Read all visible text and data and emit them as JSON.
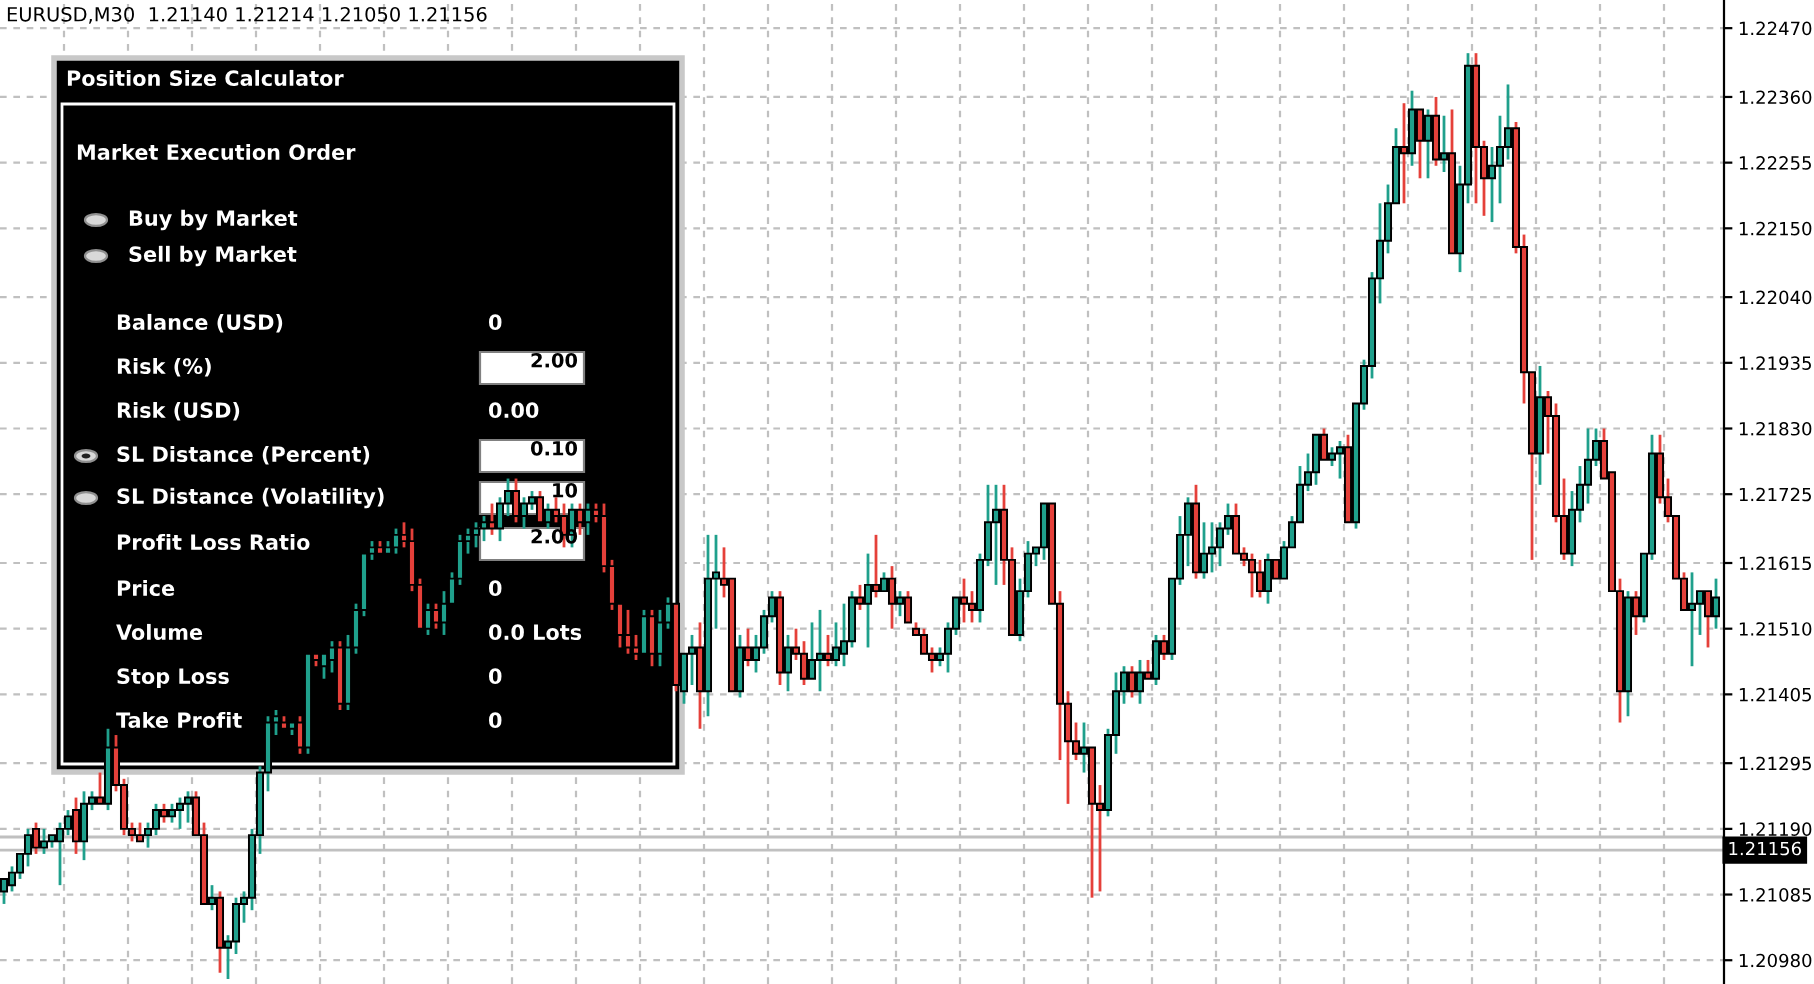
{
  "chart_data": {
    "type": "candlestick",
    "title": "EURUSD,M30  1.21140 1.21214 1.21050 1.21156",
    "categories": [
      null,
      null,
      null,
      null,
      null,
      null,
      null,
      null,
      null,
      null,
      null,
      null,
      null,
      null,
      null,
      null,
      null,
      null,
      null,
      null,
      null,
      null,
      null,
      null,
      null,
      null,
      null,
      null,
      null,
      null,
      null,
      null,
      null,
      null,
      null,
      null,
      null,
      null,
      null,
      null,
      null,
      null,
      null,
      null,
      null,
      null,
      null,
      null,
      null,
      null,
      null,
      null,
      null,
      null,
      null,
      null,
      null,
      null,
      null,
      null,
      null,
      null,
      null,
      null,
      null,
      null,
      null,
      null,
      null,
      null,
      null,
      null,
      null,
      null,
      null,
      null,
      null,
      null,
      null,
      null,
      null,
      null,
      null,
      null,
      null,
      null,
      null,
      null,
      null,
      null,
      null,
      null,
      null,
      null,
      null,
      null,
      null,
      null,
      null,
      null,
      null,
      null,
      null,
      null,
      null,
      null,
      null,
      null,
      null,
      null,
      null,
      null,
      null,
      null,
      null,
      null,
      null,
      null,
      null,
      null,
      null,
      null,
      null,
      null,
      null,
      null,
      null,
      null,
      null,
      null,
      null,
      null,
      null,
      null,
      null,
      null,
      null,
      null,
      null,
      null,
      null,
      null,
      null,
      null,
      null,
      null,
      null,
      null,
      null,
      null,
      null,
      null,
      null,
      null,
      null,
      null,
      null,
      null,
      null,
      null,
      null,
      null,
      null,
      null,
      null,
      null,
      null,
      null,
      null,
      null,
      null,
      null,
      null,
      null,
      null,
      null,
      null,
      null,
      null,
      null,
      null,
      null,
      null,
      null,
      null,
      null,
      null,
      null,
      null,
      null,
      null,
      null,
      null,
      null,
      null,
      null,
      null,
      null,
      null,
      null,
      null,
      null,
      null,
      null,
      null,
      null,
      null,
      null,
      null,
      null,
      null,
      null,
      null,
      null,
      null
    ],
    "ohlc": [
      [
        1.2109,
        1.2111,
        1.2107,
        1.2111
      ],
      [
        1.211,
        1.2113,
        1.2109,
        1.2112
      ],
      [
        1.2112,
        1.2115,
        1.2111,
        1.2115
      ],
      [
        1.2115,
        1.2119,
        1.2113,
        1.2118
      ],
      [
        1.2119,
        1.212,
        1.2115,
        1.2116
      ],
      [
        1.2116,
        1.2119,
        1.2115,
        1.2117
      ],
      [
        1.2117,
        1.2118,
        1.2116,
        1.2118
      ],
      [
        1.2117,
        1.212,
        1.211,
        1.2119
      ],
      [
        1.2119,
        1.2122,
        1.2118,
        1.2121
      ],
      [
        1.2122,
        1.2124,
        1.2115,
        1.2117
      ],
      [
        1.2117,
        1.2125,
        1.2114,
        1.2123
      ],
      [
        1.2123,
        1.2125,
        1.2122,
        1.2124
      ],
      [
        1.2124,
        1.2128,
        1.2123,
        1.2123
      ],
      [
        1.2123,
        1.2135,
        1.2122,
        1.2132
      ],
      [
        1.2132,
        1.2134,
        1.2125,
        1.2126
      ],
      [
        1.2126,
        1.2127,
        1.2118,
        1.2119
      ],
      [
        1.2119,
        1.212,
        1.2117,
        1.2118
      ],
      [
        1.2118,
        1.212,
        1.2117,
        1.2117
      ],
      [
        1.2118,
        1.212,
        1.2116,
        1.2119
      ],
      [
        1.2119,
        1.2123,
        1.2118,
        1.2122
      ],
      [
        1.2122,
        1.2123,
        1.212,
        1.2121
      ],
      [
        1.2121,
        1.2123,
        1.212,
        1.2122
      ],
      [
        1.2122,
        1.2124,
        1.2119,
        1.2123
      ],
      [
        1.2123,
        1.2125,
        1.212,
        1.2124
      ],
      [
        1.2124,
        1.2125,
        1.2118,
        1.2118
      ],
      [
        1.2118,
        1.212,
        1.2107,
        1.2107
      ],
      [
        1.2107,
        1.211,
        1.2106,
        1.2108
      ],
      [
        1.2108,
        1.2109,
        1.2096,
        1.21
      ],
      [
        1.21,
        1.2102,
        1.2095,
        1.2101
      ],
      [
        1.2101,
        1.2108,
        1.2099,
        1.2107
      ],
      [
        1.2107,
        1.2109,
        1.2104,
        1.2108
      ],
      [
        1.2108,
        1.2119,
        1.2106,
        1.2118
      ],
      [
        1.2118,
        1.2129,
        1.2115,
        1.2128
      ],
      [
        1.2128,
        1.2137,
        1.2125,
        1.2136
      ],
      [
        1.2136,
        1.2138,
        1.2134,
        1.2137
      ],
      [
        1.2136,
        1.2137,
        1.2135,
        1.2135
      ],
      [
        1.2135,
        1.2136,
        1.2134,
        1.2136
      ],
      [
        1.2136,
        1.2137,
        1.2131,
        1.2132
      ],
      [
        1.2132,
        1.2147,
        1.2131,
        1.2147
      ],
      [
        1.2147,
        1.2147,
        1.2145,
        1.2146
      ],
      [
        1.2145,
        1.2147,
        1.2143,
        1.2147
      ],
      [
        1.2146,
        1.2149,
        1.2144,
        1.2148
      ],
      [
        1.2148,
        1.2149,
        1.2138,
        1.2139
      ],
      [
        1.2139,
        1.215,
        1.2138,
        1.2148
      ],
      [
        1.2148,
        1.2155,
        1.2147,
        1.2154
      ],
      [
        1.2154,
        1.2163,
        1.2153,
        1.2163
      ],
      [
        1.2163,
        1.2165,
        1.2162,
        1.2164
      ],
      [
        1.2164,
        1.2165,
        1.2163,
        1.2163
      ],
      [
        1.2163,
        1.2165,
        1.2163,
        1.2164
      ],
      [
        1.2164,
        1.2167,
        1.2163,
        1.2166
      ],
      [
        1.2166,
        1.2168,
        1.2164,
        1.2165
      ],
      [
        1.2165,
        1.2167,
        1.2157,
        1.2158
      ],
      [
        1.2158,
        1.2159,
        1.2151,
        1.2151
      ],
      [
        1.2151,
        1.2155,
        1.215,
        1.2154
      ],
      [
        1.2154,
        1.2155,
        1.2151,
        1.2152
      ],
      [
        1.2152,
        1.2157,
        1.215,
        1.2155
      ],
      [
        1.2155,
        1.216,
        1.2155,
        1.2159
      ],
      [
        1.2159,
        1.2166,
        1.2158,
        1.2165
      ],
      [
        1.2165,
        1.2167,
        1.2163,
        1.2166
      ],
      [
        1.2166,
        1.2168,
        1.2164,
        1.2167
      ],
      [
        1.2167,
        1.2169,
        1.2165,
        1.2168
      ],
      [
        1.2168,
        1.2171,
        1.2166,
        1.2167
      ],
      [
        1.2167,
        1.2172,
        1.2165,
        1.2171
      ],
      [
        1.2171,
        1.2175,
        1.2169,
        1.2173
      ],
      [
        1.2173,
        1.2175,
        1.2168,
        1.2169
      ],
      [
        1.2169,
        1.2172,
        1.2167,
        1.2171
      ],
      [
        1.2171,
        1.2173,
        1.217,
        1.2172
      ],
      [
        1.2172,
        1.2173,
        1.2168,
        1.2168
      ],
      [
        1.2168,
        1.2171,
        1.2167,
        1.217
      ],
      [
        1.217,
        1.2172,
        1.2168,
        1.2169
      ],
      [
        1.2169,
        1.2171,
        1.2164,
        1.2166
      ],
      [
        1.2166,
        1.2171,
        1.2164,
        1.217
      ],
      [
        1.217,
        1.2171,
        1.2166,
        1.2168
      ],
      [
        1.2168,
        1.2171,
        1.2166,
        1.217
      ],
      [
        1.217,
        1.2171,
        1.2168,
        1.2169
      ],
      [
        1.2169,
        1.2171,
        1.216,
        1.2161
      ],
      [
        1.2161,
        1.2162,
        1.2154,
        1.2155
      ],
      [
        1.2155,
        1.2155,
        1.2148,
        1.215
      ],
      [
        1.215,
        1.2154,
        1.2147,
        1.2148
      ],
      [
        1.2148,
        1.215,
        1.2146,
        1.2147
      ],
      [
        1.2147,
        1.2154,
        1.2147,
        1.2153
      ],
      [
        1.2153,
        1.2154,
        1.2145,
        1.2147
      ],
      [
        1.2147,
        1.2154,
        1.2145,
        1.2152
      ],
      [
        1.2152,
        1.2156,
        1.2151,
        1.2155
      ],
      [
        1.2155,
        1.2155,
        1.2141,
        1.2142
      ],
      [
        1.2141,
        1.2147,
        1.2139,
        1.2147
      ],
      [
        1.2147,
        1.215,
        1.2142,
        1.2148
      ],
      [
        1.2148,
        1.2152,
        1.2135,
        1.2141
      ],
      [
        1.2141,
        1.2166,
        1.2137,
        1.2159
      ],
      [
        1.2159,
        1.2166,
        1.2151,
        1.216
      ],
      [
        1.2159,
        1.2164,
        1.2156,
        1.2158
      ],
      [
        1.2159,
        1.2159,
        1.2141,
        1.2141
      ],
      [
        1.2141,
        1.215,
        1.214,
        1.2148
      ],
      [
        1.2148,
        1.2151,
        1.2145,
        1.2146
      ],
      [
        1.2146,
        1.215,
        1.2144,
        1.2148
      ],
      [
        1.2148,
        1.2154,
        1.2147,
        1.2153
      ],
      [
        1.2153,
        1.2157,
        1.2152,
        1.2156
      ],
      [
        1.2156,
        1.2157,
        1.2142,
        1.2144
      ],
      [
        1.2144,
        1.215,
        1.2141,
        1.2148
      ],
      [
        1.2148,
        1.2151,
        1.2146,
        1.2147
      ],
      [
        1.2147,
        1.2149,
        1.2142,
        1.2143
      ],
      [
        1.2143,
        1.2152,
        1.2143,
        1.2146
      ],
      [
        1.2146,
        1.2154,
        1.2141,
        1.2147
      ],
      [
        1.2147,
        1.215,
        1.2145,
        1.2146
      ],
      [
        1.2146,
        1.2152,
        1.2145,
        1.2148
      ],
      [
        1.2147,
        1.2155,
        1.2145,
        1.2149
      ],
      [
        1.2149,
        1.2157,
        1.2148,
        1.2156
      ],
      [
        1.2156,
        1.2158,
        1.2154,
        1.2155
      ],
      [
        1.2155,
        1.2163,
        1.2148,
        1.2158
      ],
      [
        1.2158,
        1.2166,
        1.2156,
        1.2157
      ],
      [
        1.2157,
        1.216,
        1.2157,
        1.2159
      ],
      [
        1.2159,
        1.2161,
        1.2151,
        1.2155
      ],
      [
        1.2155,
        1.2157,
        1.2153,
        1.2156
      ],
      [
        1.2156,
        1.2157,
        1.2152,
        1.2152
      ],
      [
        1.2151,
        1.2152,
        1.215,
        1.215
      ],
      [
        1.215,
        1.2151,
        1.2147,
        1.2147
      ],
      [
        1.2147,
        1.2148,
        1.2144,
        1.2146
      ],
      [
        1.2146,
        1.2148,
        1.2145,
        1.2147
      ],
      [
        1.2147,
        1.2152,
        1.2144,
        1.2151
      ],
      [
        1.2151,
        1.2156,
        1.215,
        1.2156
      ],
      [
        1.2156,
        1.2159,
        1.2152,
        1.2155
      ],
      [
        1.2155,
        1.2157,
        1.2152,
        1.2154
      ],
      [
        1.2154,
        1.2163,
        1.2152,
        1.2162
      ],
      [
        1.2162,
        1.2174,
        1.2161,
        1.2168
      ],
      [
        1.2168,
        1.2174,
        1.2158,
        1.217
      ],
      [
        1.217,
        1.2174,
        1.2158,
        1.2162
      ],
      [
        1.2162,
        1.2164,
        1.215,
        1.215
      ],
      [
        1.215,
        1.2159,
        1.2149,
        1.2157
      ],
      [
        1.2157,
        1.2165,
        1.2156,
        1.2163
      ],
      [
        1.2163,
        1.2164,
        1.2161,
        1.2164
      ],
      [
        1.2164,
        1.2171,
        1.2162,
        1.2171
      ],
      [
        1.2171,
        1.2171,
        1.2155,
        1.2155
      ],
      [
        1.2155,
        1.2157,
        1.213,
        1.2139
      ],
      [
        1.2139,
        1.2141,
        1.2123,
        1.2133
      ],
      [
        1.2133,
        1.2136,
        1.213,
        1.2131
      ],
      [
        1.2131,
        1.2136,
        1.2128,
        1.2132
      ],
      [
        1.2132,
        1.2132,
        1.2108,
        1.2123
      ],
      [
        1.2123,
        1.2126,
        1.2109,
        1.2122
      ],
      [
        1.2122,
        1.2135,
        1.2121,
        1.2134
      ],
      [
        1.2134,
        1.2144,
        1.2131,
        1.2141
      ],
      [
        1.2141,
        1.2145,
        1.2139,
        1.2144
      ],
      [
        1.2144,
        1.2145,
        1.214,
        1.2141
      ],
      [
        1.2141,
        1.2146,
        1.2139,
        1.2144
      ],
      [
        1.2144,
        1.2146,
        1.2143,
        1.2143
      ],
      [
        1.2143,
        1.215,
        1.2142,
        1.2149
      ],
      [
        1.2149,
        1.215,
        1.2146,
        1.2147
      ],
      [
        1.2147,
        1.2159,
        1.2146,
        1.2159
      ],
      [
        1.2159,
        1.2169,
        1.2158,
        1.2166
      ],
      [
        1.2166,
        1.2172,
        1.2161,
        1.2171
      ],
      [
        1.2171,
        1.2174,
        1.2159,
        1.216
      ],
      [
        1.216,
        1.2168,
        1.2159,
        1.2163
      ],
      [
        1.2163,
        1.2168,
        1.216,
        1.2164
      ],
      [
        1.2164,
        1.2168,
        1.2161,
        1.2167
      ],
      [
        1.2167,
        1.2171,
        1.2166,
        1.2169
      ],
      [
        1.2169,
        1.2171,
        1.2163,
        1.2163
      ],
      [
        1.2163,
        1.2164,
        1.2161,
        1.2162
      ],
      [
        1.2162,
        1.2163,
        1.2156,
        1.216
      ],
      [
        1.216,
        1.2162,
        1.2156,
        1.2157
      ],
      [
        1.2157,
        1.2163,
        1.2155,
        1.2162
      ],
      [
        1.2162,
        1.2162,
        1.2159,
        1.2159
      ],
      [
        1.2159,
        1.2165,
        1.2159,
        1.2164
      ],
      [
        1.2164,
        1.2169,
        1.2164,
        1.2168
      ],
      [
        1.2168,
        1.2177,
        1.2168,
        1.2174
      ],
      [
        1.2174,
        1.2179,
        1.2173,
        1.2176
      ],
      [
        1.2176,
        1.2182,
        1.2174,
        1.2182
      ],
      [
        1.2182,
        1.2183,
        1.2178,
        1.2178
      ],
      [
        1.2178,
        1.218,
        1.2177,
        1.2179
      ],
      [
        1.2179,
        1.2181,
        1.2175,
        1.218
      ],
      [
        1.218,
        1.2182,
        1.2168,
        1.2168
      ],
      [
        1.2168,
        1.2187,
        1.2167,
        1.2187
      ],
      [
        1.2187,
        1.2194,
        1.2186,
        1.2193
      ],
      [
        1.2193,
        1.2208,
        1.2191,
        1.2207
      ],
      [
        1.2207,
        1.2219,
        1.2203,
        1.2213
      ],
      [
        1.2213,
        1.2222,
        1.2211,
        1.2219
      ],
      [
        1.2219,
        1.2231,
        1.2219,
        1.2228
      ],
      [
        1.2228,
        1.2235,
        1.2219,
        1.2227
      ],
      [
        1.2227,
        1.2237,
        1.2225,
        1.2234
      ],
      [
        1.2234,
        1.2234,
        1.2223,
        1.2229
      ],
      [
        1.2229,
        1.2234,
        1.2223,
        1.2233
      ],
      [
        1.2233,
        1.2236,
        1.2225,
        1.2226
      ],
      [
        1.2226,
        1.2233,
        1.2224,
        1.2227
      ],
      [
        1.2227,
        1.2234,
        1.2211,
        1.2211
      ],
      [
        1.2211,
        1.2225,
        1.2208,
        1.2222
      ],
      [
        1.2222,
        1.2243,
        1.2219,
        1.2241
      ],
      [
        1.2241,
        1.2243,
        1.2219,
        1.2228
      ],
      [
        1.2228,
        1.2229,
        1.2217,
        1.2223
      ],
      [
        1.2223,
        1.2228,
        1.2216,
        1.2225
      ],
      [
        1.2225,
        1.2233,
        1.2219,
        1.2228
      ],
      [
        1.2228,
        1.2238,
        1.2226,
        1.2231
      ],
      [
        1.2231,
        1.2232,
        1.2211,
        1.2212
      ],
      [
        1.2212,
        1.2214,
        1.2187,
        1.2192
      ],
      [
        1.2192,
        1.2192,
        1.2162,
        1.2179
      ],
      [
        1.2179,
        1.2193,
        1.2174,
        1.2188
      ],
      [
        1.2188,
        1.2189,
        1.2179,
        1.2185
      ],
      [
        1.2185,
        1.2187,
        1.2168,
        1.2169
      ],
      [
        1.2169,
        1.2175,
        1.2162,
        1.2163
      ],
      [
        1.2163,
        1.2173,
        1.2161,
        1.217
      ],
      [
        1.217,
        1.2177,
        1.2168,
        1.2174
      ],
      [
        1.2174,
        1.2183,
        1.2171,
        1.2178
      ],
      [
        1.2178,
        1.2183,
        1.2177,
        1.2181
      ],
      [
        1.2181,
        1.2183,
        1.2175,
        1.2175
      ],
      [
        1.2176,
        1.2176,
        1.2157,
        1.2157
      ],
      [
        1.2157,
        1.2159,
        1.2136,
        1.2141
      ],
      [
        1.2141,
        1.2157,
        1.2137,
        1.2156
      ],
      [
        1.2156,
        1.2157,
        1.215,
        1.2153
      ],
      [
        1.2153,
        1.2163,
        1.2152,
        1.2163
      ],
      [
        1.2163,
        1.2182,
        1.2162,
        1.2179
      ],
      [
        1.2179,
        1.2182,
        1.2171,
        1.2172
      ],
      [
        1.2172,
        1.2175,
        1.2168,
        1.2169
      ],
      [
        1.2169,
        1.2169,
        1.2159,
        1.2159
      ],
      [
        1.2159,
        1.216,
        1.2154,
        1.2154
      ],
      [
        1.2154,
        1.216,
        1.2145,
        1.2155
      ],
      [
        1.2155,
        1.2157,
        1.215,
        1.2157
      ],
      [
        1.2157,
        1.2157,
        1.2148,
        1.2153
      ],
      [
        1.2153,
        1.2159,
        1.2151,
        1.2156
      ]
    ],
    "colors": [
      "#1fa08c",
      "#1fa08c",
      "#1fa08c",
      "#1fa08c",
      "#e5403a",
      "#1fa08c",
      "#1fa08c",
      "#1fa08c",
      "#1fa08c",
      "#e5403a",
      "#1fa08c",
      "#1fa08c",
      "#e5403a",
      "#1fa08c",
      "#e5403a",
      "#e5403a",
      "#e5403a",
      "#e5403a",
      "#1fa08c",
      "#1fa08c",
      "#e5403a",
      "#1fa08c",
      "#1fa08c",
      "#1fa08c",
      "#e5403a",
      "#e5403a",
      "#1fa08c",
      "#e5403a",
      "#1fa08c",
      "#1fa08c",
      "#1fa08c",
      "#1fa08c",
      "#1fa08c",
      "#1fa08c",
      "#1fa08c",
      "#e5403a",
      "#1fa08c",
      "#e5403a",
      "#1fa08c",
      "#e5403a",
      "#1fa08c",
      "#1fa08c",
      "#e5403a",
      "#1fa08c",
      "#1fa08c",
      "#1fa08c",
      "#1fa08c",
      "#e5403a",
      "#1fa08c",
      "#1fa08c",
      "#e5403a",
      "#e5403a",
      "#e5403a",
      "#1fa08c",
      "#e5403a",
      "#1fa08c",
      "#1fa08c",
      "#1fa08c",
      "#1fa08c",
      "#1fa08c",
      "#1fa08c",
      "#e5403a",
      "#1fa08c",
      "#1fa08c",
      "#e5403a",
      "#1fa08c",
      "#1fa08c",
      "#e5403a",
      "#1fa08c",
      "#e5403a",
      "#e5403a",
      "#1fa08c",
      "#e5403a",
      "#1fa08c",
      "#e5403a",
      "#e5403a",
      "#e5403a",
      "#e5403a",
      "#e5403a",
      "#e5403a",
      "#1fa08c",
      "#e5403a",
      "#1fa08c",
      "#1fa08c",
      "#e5403a",
      "#1fa08c",
      "#1fa08c",
      "#e5403a",
      "#1fa08c",
      "#1fa08c",
      "#e5403a",
      "#e5403a",
      "#1fa08c",
      "#e5403a",
      "#1fa08c",
      "#1fa08c",
      "#1fa08c",
      "#e5403a",
      "#1fa08c",
      "#e5403a",
      "#e5403a",
      "#1fa08c",
      "#1fa08c",
      "#e5403a",
      "#1fa08c",
      "#1fa08c",
      "#1fa08c",
      "#e5403a",
      "#1fa08c",
      "#e5403a",
      "#1fa08c",
      "#e5403a",
      "#1fa08c",
      "#e5403a",
      "#e5403a",
      "#e5403a",
      "#e5403a",
      "#1fa08c",
      "#1fa08c",
      "#1fa08c",
      "#e5403a",
      "#e5403a",
      "#1fa08c",
      "#1fa08c",
      "#1fa08c",
      "#e5403a",
      "#e5403a",
      "#1fa08c",
      "#1fa08c",
      "#1fa08c",
      "#1fa08c",
      "#e5403a",
      "#e5403a",
      "#e5403a",
      "#e5403a",
      "#1fa08c",
      "#e5403a",
      "#e5403a",
      "#1fa08c",
      "#1fa08c",
      "#1fa08c",
      "#e5403a",
      "#1fa08c",
      "#e5403a",
      "#1fa08c",
      "#e5403a",
      "#1fa08c",
      "#1fa08c",
      "#1fa08c",
      "#e5403a",
      "#1fa08c",
      "#1fa08c",
      "#1fa08c",
      "#1fa08c",
      "#e5403a",
      "#e5403a",
      "#e5403a",
      "#e5403a",
      "#1fa08c",
      "#e5403a",
      "#1fa08c",
      "#1fa08c",
      "#1fa08c",
      "#1fa08c",
      "#1fa08c",
      "#e5403a",
      "#1fa08c",
      "#1fa08c",
      "#e5403a",
      "#1fa08c",
      "#1fa08c",
      "#1fa08c",
      "#1fa08c",
      "#1fa08c",
      "#1fa08c",
      "#e5403a",
      "#1fa08c",
      "#e5403a",
      "#1fa08c",
      "#e5403a",
      "#1fa08c",
      "#e5403a",
      "#1fa08c",
      "#1fa08c",
      "#e5403a",
      "#e5403a",
      "#1fa08c",
      "#1fa08c",
      "#1fa08c",
      "#e5403a",
      "#e5403a",
      "#e5403a",
      "#1fa08c",
      "#e5403a",
      "#e5403a",
      "#e5403a",
      "#1fa08c",
      "#1fa08c",
      "#1fa08c",
      "#1fa08c",
      "#e5403a",
      "#e5403a",
      "#e5403a",
      "#1fa08c",
      "#e5403a",
      "#1fa08c",
      "#1fa08c",
      "#e5403a",
      "#e5403a",
      "#e5403a",
      "#e5403a",
      "#1fa08c",
      "#1fa08c",
      "#e5403a",
      "#1fa08c"
    ],
    "ylim": [
      1.20942,
      1.22515
    ],
    "yticks": [
      {
        "value": 1.2247,
        "label": "1.22470"
      },
      {
        "value": 1.2236,
        "label": "1.22360"
      },
      {
        "value": 1.22255,
        "label": "1.22255"
      },
      {
        "value": 1.2215,
        "label": "1.22150"
      },
      {
        "value": 1.2204,
        "label": "1.22040"
      },
      {
        "value": 1.21935,
        "label": "1.21935"
      },
      {
        "value": 1.2183,
        "label": "1.21830"
      },
      {
        "value": 1.21725,
        "label": "1.21725"
      },
      {
        "value": 1.21615,
        "label": "1.21615"
      },
      {
        "value": 1.2151,
        "label": "1.21510"
      },
      {
        "value": 1.21405,
        "label": "1.21405"
      },
      {
        "value": 1.21295,
        "label": "1.21295"
      },
      {
        "value": 1.2119,
        "label": "1.21190"
      },
      {
        "value": 1.21085,
        "label": "1.21085"
      },
      {
        "value": 1.2098,
        "label": "1.20980"
      }
    ],
    "ref_lines": [
      {
        "axis": "y",
        "value": 1.21177,
        "color": "#c0c0c0"
      },
      {
        "axis": "y",
        "value": 1.21156,
        "label": "1.21156",
        "color": "#c0c0c0"
      }
    ],
    "grid": true,
    "tick_labels": "y",
    "annotations": [
      "Position Size Calculator",
      "Market Execution Order",
      "Buy by Market",
      "Sell by Market",
      "Balance (USD)",
      "0",
      "Risk (%)",
      "2.00",
      "Risk (USD)",
      "0.00",
      "SL Distance (Percent)",
      "0.10",
      "SL Distance (Volatility)",
      "10",
      "Profit Loss Ratio",
      "2.00",
      "Price",
      "0",
      "Volume",
      "0.0 Lots",
      "Stop Loss",
      "0",
      "Take Profit",
      "0"
    ]
  }
}
